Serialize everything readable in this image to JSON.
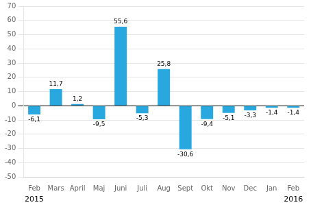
{
  "chart_data": {
    "type": "bar",
    "categories": [
      "Feb",
      "Mars",
      "April",
      "Maj",
      "Juni",
      "Juli",
      "Aug",
      "Sept",
      "Okt",
      "Nov",
      "Dec",
      "Jan",
      "Feb"
    ],
    "values": [
      -6.1,
      11.7,
      1.2,
      -9.5,
      55.6,
      -5.3,
      25.8,
      -30.6,
      -9.4,
      -5.1,
      -3.3,
      -1.4,
      -1.4
    ],
    "value_labels": [
      "-6,1",
      "11,7",
      "1,2",
      "-9,5",
      "55,6",
      "-5,3",
      "25,8",
      "-30,6",
      "-9,4",
      "-5,1",
      "-3,3",
      "-1,4",
      "-1,4"
    ],
    "data_labels": true,
    "color": "#29a8e0",
    "ylim": [
      -50,
      70
    ],
    "yticks": [
      -50,
      -40,
      -30,
      -20,
      -10,
      0,
      10,
      20,
      30,
      40,
      50,
      60,
      70
    ],
    "grid": true,
    "annotations": [
      {
        "text": "2015",
        "x": 0
      },
      {
        "text": "2016",
        "x": 12
      }
    ]
  }
}
